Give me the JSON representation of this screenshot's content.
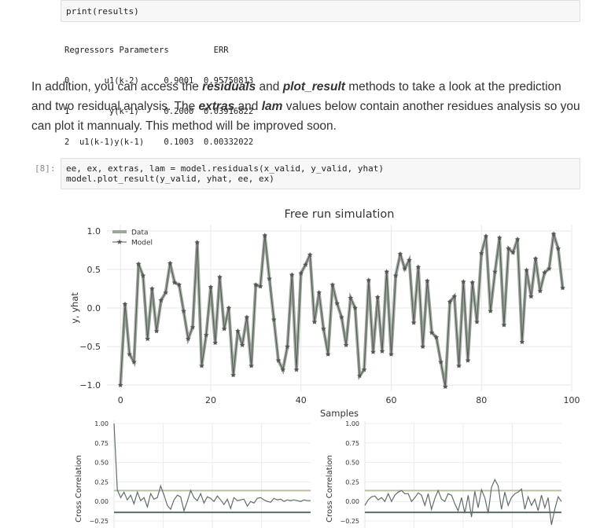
{
  "cell_prev": {
    "code": "print(results)"
  },
  "results_table": {
    "header": "Regressors Parameters         ERR",
    "rows": [
      "0       u1(k-2)     0.9001  0.95750813",
      "1        y(k-1)     0.2000  0.03916822",
      "2  u1(k-1)y(k-1)    0.1003  0.00332022"
    ]
  },
  "prose": {
    "t1": "In addition, you can access the ",
    "b1": "residuals",
    "t2": " and ",
    "b2": "plot_result",
    "t3": " methods to take a look at the prediction and two residual analysis. The ",
    "b3": "extras",
    "t4": " and ",
    "b4": "lam",
    "t5": " values below contain another residues analysis so you can plot it mannualy. This method will be improved soon."
  },
  "cell8": {
    "prompt": "[8]:",
    "line1": "ee, ex, extras, lam = model.residuals(x_valid, y_valid, yhat)",
    "line2": "model.plot_result(y_valid, yhat, ee, ex)"
  },
  "colors": {
    "data": "#9aa79a",
    "model": "#555555",
    "conf_upper": "#b7c0a2",
    "conf_lower": "#5d6d6a"
  },
  "chart_data": [
    {
      "type": "line",
      "title": "Free run simulation",
      "xlabel": "Samples",
      "ylabel": "y, yhat",
      "xlim": [
        -3,
        100
      ],
      "ylim": [
        -1.08,
        1.08
      ],
      "xticks": [
        0,
        20,
        40,
        60,
        80,
        100
      ],
      "yticks": [
        1.0,
        0.5,
        0.0,
        -0.5,
        -1.0
      ],
      "ytick_labels": [
        "1.0",
        "0.5",
        "0.0",
        "−0.5",
        "−1.0"
      ],
      "legend": [
        "Data",
        "Model"
      ],
      "legend_position": "top-left",
      "grid": true,
      "series": [
        {
          "name": "Data",
          "x_start": 0,
          "values": [
            -1.0,
            0.05,
            -0.6,
            -0.7,
            0.57,
            0.42,
            -0.4,
            0.25,
            -0.3,
            0.1,
            0.2,
            0.58,
            0.33,
            0.3,
            -0.04,
            -0.4,
            -0.25,
            0.85,
            -0.75,
            -0.35,
            0.27,
            -0.45,
            0.4,
            -0.27,
            0.0,
            -0.87,
            -0.3,
            -0.48,
            -0.12,
            -0.75,
            0.3,
            0.28,
            0.94,
            0.38,
            -0.15,
            -0.68,
            -0.8,
            -0.5,
            0.43,
            -0.8,
            0.45,
            0.56,
            0.69,
            -0.18,
            0.2,
            -0.27,
            -0.6,
            0.3,
            0.06,
            -0.12,
            -0.48,
            0.13,
            0.0,
            -0.88,
            -0.8,
            0.36,
            -0.57,
            0.14,
            -0.56,
            0.47,
            -0.6,
            0.42,
            0.7,
            0.51,
            0.62,
            -0.19,
            0.53,
            -0.5,
            0.35,
            -0.32,
            -0.38,
            -0.7,
            -1.02,
            0.08,
            0.15,
            -0.75,
            0.34,
            -0.68,
            0.33,
            -0.18,
            0.71,
            0.93,
            -0.04,
            0.47,
            0.91,
            -0.22,
            0.77,
            0.72,
            0.89,
            -0.44,
            0.49,
            0.15,
            0.64,
            0.22,
            0.46,
            0.51,
            0.96,
            0.77,
            0.26
          ]
        },
        {
          "name": "Model",
          "x_start": 0,
          "values": [
            -1.0,
            0.05,
            -0.6,
            -0.7,
            0.57,
            0.42,
            -0.4,
            0.25,
            -0.3,
            0.1,
            0.2,
            0.58,
            0.33,
            0.3,
            -0.04,
            -0.4,
            -0.25,
            0.85,
            -0.75,
            -0.35,
            0.27,
            -0.45,
            0.4,
            -0.27,
            0.0,
            -0.87,
            -0.3,
            -0.48,
            -0.12,
            -0.75,
            0.3,
            0.28,
            0.94,
            0.38,
            -0.15,
            -0.68,
            -0.8,
            -0.5,
            0.43,
            -0.8,
            0.45,
            0.56,
            0.69,
            -0.18,
            0.2,
            -0.27,
            -0.6,
            0.3,
            0.06,
            -0.12,
            -0.48,
            0.13,
            0.0,
            -0.88,
            -0.8,
            0.36,
            -0.57,
            0.14,
            -0.56,
            0.47,
            -0.6,
            0.42,
            0.7,
            0.51,
            0.62,
            -0.19,
            0.53,
            -0.5,
            0.35,
            -0.32,
            -0.38,
            -0.7,
            -1.02,
            0.08,
            0.15,
            -0.75,
            0.34,
            -0.68,
            0.33,
            -0.18,
            0.71,
            0.93,
            -0.04,
            0.47,
            0.91,
            -0.22,
            0.77,
            0.72,
            0.89,
            -0.44,
            0.49,
            0.15,
            0.64,
            0.22,
            0.46,
            0.51,
            0.96,
            0.77,
            0.26
          ]
        }
      ]
    },
    {
      "type": "line",
      "ylabel": "Cross Correlation",
      "ylim": [
        -0.3,
        1.0
      ],
      "yticks": [
        1.0,
        0.75,
        0.5,
        0.25,
        0.0,
        -0.25
      ],
      "ytick_labels": [
        "1.00",
        "0.75",
        "0.50",
        "0.25",
        "0.00",
        "−0.25"
      ],
      "confidence_upper": 0.14,
      "confidence_lower": -0.14,
      "grid": true,
      "series": [
        {
          "values": [
            1.0,
            0.15,
            0.05,
            0.12,
            0.02,
            0.08,
            -0.03,
            0.12,
            0.01,
            0.05,
            -0.07,
            0.1,
            0.03,
            0.05,
            0.2,
            0.08,
            -0.05,
            -0.1,
            0.02,
            0.08,
            0.06,
            -0.12,
            0.0,
            0.14,
            0.05,
            0.01,
            0.1,
            -0.02,
            0.06,
            0.04,
            0.0,
            0.07,
            0.02,
            -0.04,
            0.03,
            -0.09,
            0.05,
            0.01,
            0.02,
            0.03,
            -0.06,
            0.0,
            -0.02,
            0.04,
            0.05,
            0.02,
            0.0,
            -0.01,
            0.04,
            0.02,
            0.03,
            0.0,
            0.02,
            0.01,
            0.02,
            0.01,
            0.0,
            0.02,
            0.01,
            0.01
          ]
        }
      ]
    },
    {
      "type": "line",
      "ylabel": "Cross Correlation",
      "ylim": [
        -0.3,
        1.0
      ],
      "yticks": [
        1.0,
        0.75,
        0.5,
        0.25,
        0.0,
        -0.25
      ],
      "ytick_labels": [
        "1.00",
        "0.75",
        "0.50",
        "0.25",
        "0.00",
        "−0.25"
      ],
      "confidence_upper": 0.14,
      "confidence_lower": -0.14,
      "grid": true,
      "series": [
        {
          "values": [
            -0.05,
            0.02,
            0.06,
            0.07,
            0.02,
            0.05,
            0.0,
            0.1,
            0.0,
            0.08,
            0.12,
            0.14,
            0.1,
            0.1,
            0.0,
            0.05,
            0.11,
            0.08,
            -0.05,
            0.1,
            -0.1,
            0.04,
            0.14,
            0.03,
            0.0,
            0.1,
            0.08,
            -0.03,
            -0.12,
            0.05,
            -0.15,
            0.08,
            -0.2,
            0.13,
            -0.08,
            0.15,
            0.05,
            -0.15,
            0.18,
            0.28,
            0.2,
            -0.1,
            0.12,
            -0.05,
            0.05,
            0.1,
            0.12,
            0.16,
            -0.1,
            0.06,
            -0.05,
            0.03,
            -0.12,
            0.08,
            -0.08,
            0.05,
            -0.3,
            -0.1,
            0.06,
            0.0
          ]
        }
      ]
    }
  ]
}
